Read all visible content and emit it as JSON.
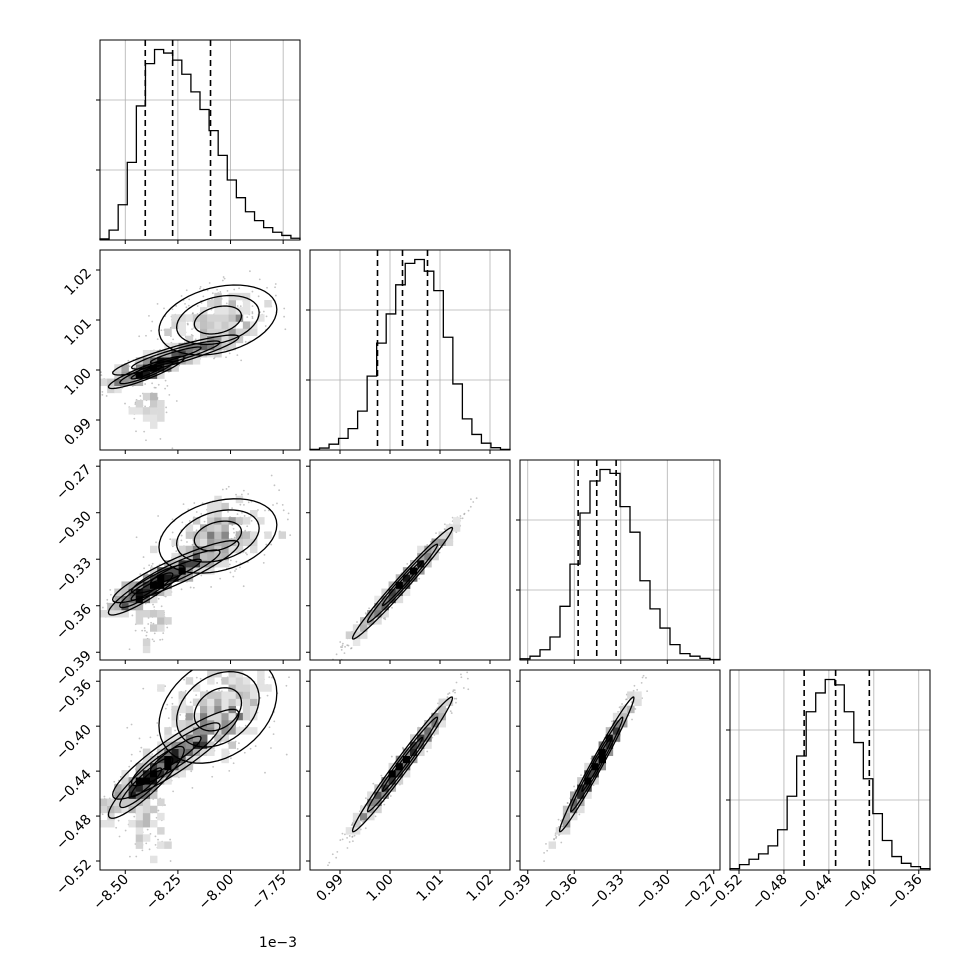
{
  "chart_data": {
    "type": "corner",
    "x_offset_label": "1e−3",
    "params": [
      {
        "range": [
          -8.62,
          -7.67
        ],
        "ticks": [
          -8.5,
          -8.25,
          -8.0,
          -7.75
        ],
        "tick_labels": [
          "−8.50",
          "−8.25",
          "−8.00",
          "−7.75"
        ],
        "quantiles": [
          -8.405,
          -8.275,
          -8.095
        ],
        "hist": [
          0.3,
          2.8,
          10,
          22,
          38,
          50,
          54,
          53,
          51,
          47,
          42,
          37,
          31,
          24,
          17,
          12,
          8,
          5.5,
          3.5,
          2.2,
          1.3,
          0.5
        ]
      },
      {
        "range": [
          0.984,
          1.024
        ],
        "ticks": [
          0.99,
          1.0,
          1.01,
          1.02
        ],
        "tick_labels": [
          "0.99",
          "1.00",
          "1.01",
          "1.02"
        ],
        "quantiles": [
          0.9975,
          1.0025,
          1.0075
        ],
        "hist": [
          0.3,
          1,
          3,
          6,
          11,
          20,
          38,
          55,
          70,
          85,
          96,
          98,
          92,
          82,
          58,
          34,
          16,
          8,
          3.5,
          1.2,
          0.3
        ]
      },
      {
        "range": [
          -0.395,
          -0.266
        ],
        "ticks": [
          -0.39,
          -0.36,
          -0.33,
          -0.3,
          -0.27
        ],
        "tick_labels": [
          "−0.39",
          "−0.36",
          "−0.33",
          "−0.30",
          "−0.27"
        ],
        "quantiles": [
          -0.3575,
          -0.3455,
          -0.333
        ],
        "hist": [
          1,
          3,
          8,
          18,
          42,
          75,
          115,
          140,
          149,
          146,
          120,
          100,
          62,
          40,
          25,
          12,
          5,
          3,
          1.3,
          0.4
        ]
      },
      {
        "range": [
          -0.528,
          -0.35
        ],
        "ticks": [
          -0.52,
          -0.48,
          -0.44,
          -0.4,
          -0.36
        ],
        "tick_labels": [
          "−0.52",
          "−0.48",
          "−0.44",
          "−0.40",
          "−0.36"
        ],
        "quantiles": [
          -0.462,
          -0.434,
          -0.404
        ],
        "hist": [
          1,
          4,
          8,
          12,
          18,
          30,
          55,
          85,
          118,
          132,
          142,
          138,
          118,
          95,
          68,
          42,
          22,
          10,
          5,
          2.5,
          1
        ]
      }
    ],
    "pairs": [
      {
        "row": 1,
        "col": 0,
        "blobs": [
          [
            -8.4,
            0.9995,
            0.09,
            0.0016,
            2.0,
            300
          ],
          [
            -8.26,
            1.003,
            0.15,
            0.002,
            2.0,
            380
          ],
          [
            -8.06,
            1.01,
            0.14,
            0.0035,
            0.3,
            380
          ],
          [
            -8.38,
            0.993,
            0.05,
            0.003,
            0,
            90
          ]
        ]
      },
      {
        "row": 2,
        "col": 0,
        "blobs": [
          [
            -8.4,
            -0.35,
            0.09,
            0.008,
            2.0,
            300
          ],
          [
            -8.26,
            -0.338,
            0.15,
            0.01,
            2.0,
            380
          ],
          [
            -8.06,
            -0.315,
            0.14,
            0.012,
            0.3,
            380
          ],
          [
            -8.38,
            -0.37,
            0.05,
            0.01,
            0,
            90
          ]
        ]
      },
      {
        "row": 3,
        "col": 0,
        "blobs": [
          [
            -8.4,
            -0.45,
            0.09,
            0.016,
            2.0,
            300
          ],
          [
            -8.26,
            -0.425,
            0.15,
            0.02,
            2.0,
            380
          ],
          [
            -8.06,
            -0.385,
            0.14,
            0.024,
            0.3,
            380
          ],
          [
            -8.38,
            -0.485,
            0.05,
            0.018,
            0,
            90
          ]
        ]
      },
      {
        "row": 2,
        "col": 1,
        "blobs": [
          [
            1.0025,
            -0.3455,
            0.005,
            0.018,
            0.985,
            1000
          ]
        ]
      },
      {
        "row": 3,
        "col": 1,
        "blobs": [
          [
            1.0025,
            -0.434,
            0.005,
            0.03,
            0.985,
            1000
          ]
        ]
      },
      {
        "row": 3,
        "col": 2,
        "blobs": [
          [
            -0.3455,
            -0.434,
            0.012,
            0.03,
            0.985,
            1000
          ]
        ]
      }
    ]
  }
}
